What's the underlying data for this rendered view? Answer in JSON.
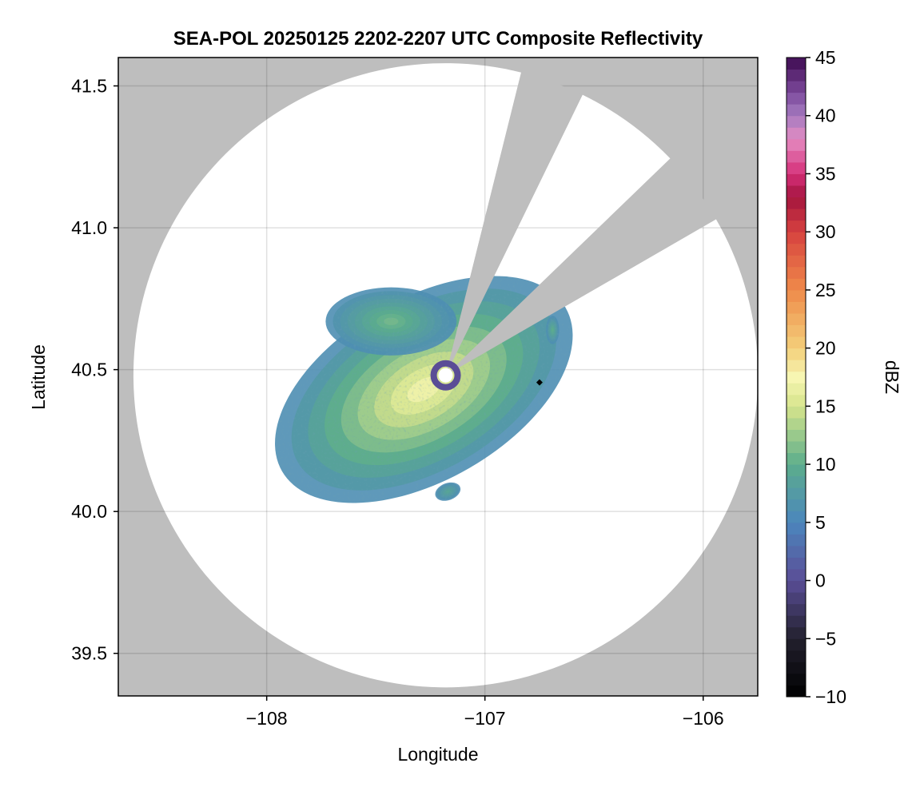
{
  "chart_data": {
    "type": "heatmap",
    "title": "SEA-POL 20250125 2202-2207 UTC Composite Reflectivity",
    "xlabel": "Longitude",
    "ylabel": "Latitude",
    "xlim": [
      -108.68,
      -105.75
    ],
    "ylim": [
      39.35,
      41.6
    ],
    "xticks": [
      -108,
      -107,
      -106
    ],
    "xtick_labels": [
      "−108",
      "−107",
      "−106"
    ],
    "yticks": [
      39.5,
      40.0,
      40.5,
      41.0,
      41.5
    ],
    "ytick_labels": [
      "39.5",
      "40.0",
      "40.5",
      "41.0",
      "41.5"
    ],
    "grid": true,
    "background_color": "#bebebe",
    "coverage_color": "#ffffff",
    "radar": {
      "center": [
        -107.18,
        40.48
      ],
      "range_lat_deg": 1.1,
      "blocked_sectors_deg_cw_from_north": [
        [
          14,
          26
        ],
        [
          46,
          60
        ]
      ]
    },
    "site_marker": [
      -106.75,
      40.455
    ],
    "echo_regions": [
      {
        "name": "main",
        "center": [
          -107.28,
          40.43
        ],
        "lon_radius": 0.75,
        "lat_radius": 0.32,
        "rotation_deg": -30,
        "peak_dbz": 17
      },
      {
        "name": "north-lobe",
        "center": [
          -107.43,
          40.67
        ],
        "lon_radius": 0.3,
        "lat_radius": 0.12,
        "rotation_deg": 0,
        "peak_dbz": 11
      },
      {
        "name": "east-cell",
        "center": [
          -106.69,
          40.64
        ],
        "lon_radius": 0.03,
        "lat_radius": 0.05,
        "rotation_deg": 0,
        "peak_dbz": 10
      },
      {
        "name": "south-cell",
        "center": [
          -107.17,
          40.07
        ],
        "lon_radius": 0.06,
        "lat_radius": 0.03,
        "rotation_deg": -20,
        "peak_dbz": 9
      }
    ],
    "near_radar_ring_dbz": 0,
    "colorbar": {
      "label": "dBZ",
      "min": -10,
      "max": 45,
      "ticks": [
        -10,
        -5,
        0,
        5,
        10,
        15,
        20,
        25,
        30,
        35,
        40,
        45
      ],
      "tick_labels": [
        "−10",
        "−5",
        "0",
        "5",
        "10",
        "15",
        "20",
        "25",
        "30",
        "35",
        "40",
        "45"
      ],
      "color_stops": [
        {
          "v": -10,
          "c": "#000000"
        },
        {
          "v": -5,
          "c": "#22202e"
        },
        {
          "v": 0,
          "c": "#5a4d96"
        },
        {
          "v": 5,
          "c": "#4b86bd"
        },
        {
          "v": 10,
          "c": "#5cad8c"
        },
        {
          "v": 15,
          "c": "#d6e48c"
        },
        {
          "v": 17.5,
          "c": "#f7f6b2"
        },
        {
          "v": 20,
          "c": "#f3cf7a"
        },
        {
          "v": 25,
          "c": "#ef8a4a"
        },
        {
          "v": 30,
          "c": "#d7423f"
        },
        {
          "v": 33,
          "c": "#a3143e"
        },
        {
          "v": 35,
          "c": "#d52f79"
        },
        {
          "v": 38,
          "c": "#e48cc2"
        },
        {
          "v": 40,
          "c": "#a57bc0"
        },
        {
          "v": 42,
          "c": "#7c4a9c"
        },
        {
          "v": 45,
          "c": "#3e0a50"
        }
      ]
    }
  }
}
